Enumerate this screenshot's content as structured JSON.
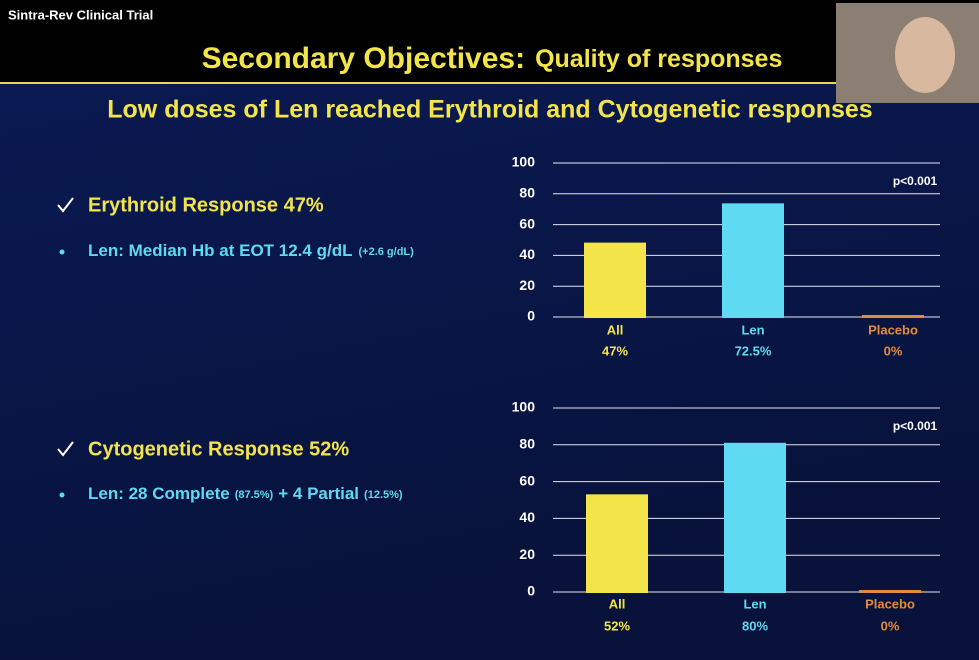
{
  "header": {
    "label": "Sintra-Rev Clinical Trial",
    "title": "Secondary Objectives:",
    "title_sub": "Quality of responses",
    "subtitle": "Low doses of Len reached Erythroid and Cytogenetic responses"
  },
  "bullets": [
    {
      "heading": "Erythroid Response 47%",
      "detail": [
        "Len: Median Hb at EOT 12.4 g/dL",
        "(+2.6 g/dL)"
      ]
    },
    {
      "heading": "Cytogenetic Response 52%",
      "detail": [
        "Len: 28 Complete",
        "(87.5%)",
        "+ 4 Partial",
        "(12.5%)"
      ]
    }
  ],
  "chart_data": [
    {
      "type": "bar",
      "categories": [
        "All",
        "Len",
        "Placebo"
      ],
      "values": [
        47,
        72.5,
        0
      ],
      "value_labels": [
        "47%",
        "72.5%",
        "0%"
      ],
      "colors": [
        "#f3e549",
        "#5edaf2",
        "#e48a3c"
      ],
      "ylim": [
        0,
        100
      ],
      "yticks": [
        0,
        20,
        40,
        60,
        80,
        100
      ],
      "grid": true,
      "annotation": "p<0.001"
    },
    {
      "type": "bar",
      "categories": [
        "All",
        "Len",
        "Placebo"
      ],
      "values": [
        52,
        80,
        0
      ],
      "value_labels": [
        "52%",
        "80%",
        "0%"
      ],
      "colors": [
        "#f3e549",
        "#5edaf2",
        "#e48a3c"
      ],
      "ylim": [
        0,
        100
      ],
      "yticks": [
        0,
        20,
        40,
        60,
        80,
        100
      ],
      "grid": true,
      "annotation": "p<0.001"
    }
  ]
}
